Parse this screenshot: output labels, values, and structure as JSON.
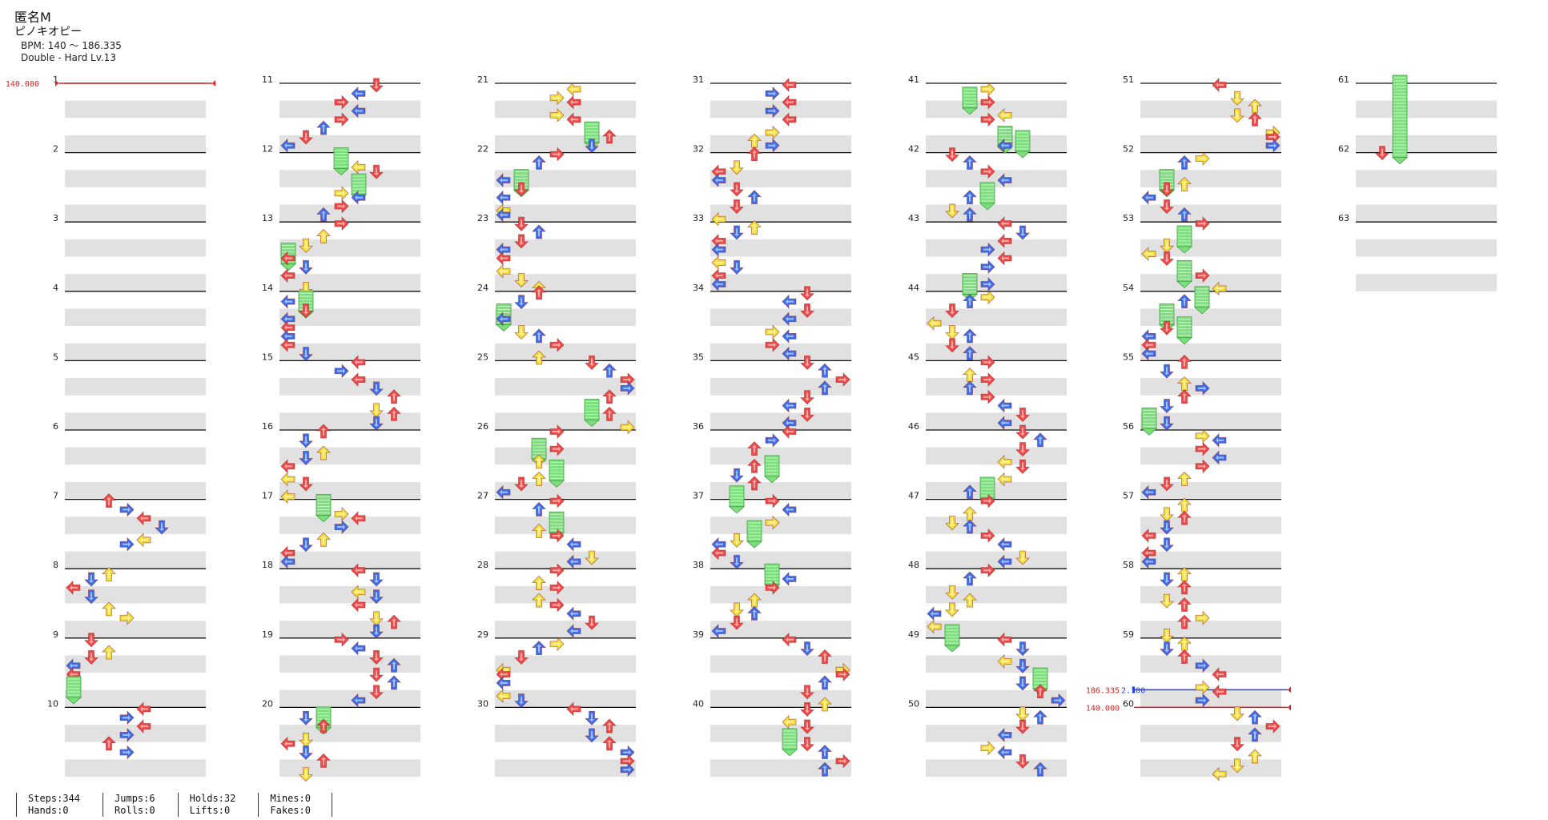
{
  "header": {
    "title": "匿名M",
    "artist": "ピノキオピー",
    "bpm": "BPM: 140 ～ 186.335",
    "difficulty": "Double - Hard  Lv.13"
  },
  "bpm_markers": [
    {
      "id": "start",
      "value": "140.000",
      "measure": 1
    },
    {
      "id": "change-high",
      "value": "186.335",
      "value2": "2.100",
      "measure": 60
    },
    {
      "id": "change-back",
      "value": "140.000",
      "measure": 60
    }
  ],
  "colors": {
    "red": "#f24848",
    "blue": "#3a6ef0",
    "yellow": "#f5e13a",
    "purple": "#b24cf0",
    "hold_green": "#7be07b",
    "stripe": "#e1e1e1",
    "bar_line": "#111111",
    "bpm_red": "#e02020",
    "bpm_blue": "#2040e0"
  },
  "columns": [
    {
      "measures": [
        1,
        2,
        3,
        4,
        5,
        6,
        7,
        8,
        9,
        10
      ]
    },
    {
      "measures": [
        11,
        12,
        13,
        14,
        15,
        16,
        17,
        18,
        19,
        20
      ]
    },
    {
      "measures": [
        21,
        22,
        23,
        24,
        25,
        26,
        27,
        28,
        29,
        30
      ]
    },
    {
      "measures": [
        31,
        32,
        33,
        34,
        35,
        36,
        37,
        38,
        39,
        40
      ]
    },
    {
      "measures": [
        41,
        42,
        43,
        44,
        45,
        46,
        47,
        48,
        49,
        50
      ]
    },
    {
      "measures": [
        51,
        52,
        53,
        54,
        55,
        56,
        57,
        58,
        59,
        60
      ]
    },
    {
      "measures": [
        61,
        62,
        63
      ]
    }
  ],
  "stats": [
    [
      {
        "label": "Steps",
        "value": "344"
      },
      {
        "label": "Hands",
        "value": "0"
      }
    ],
    [
      {
        "label": "Jumps",
        "value": "6"
      },
      {
        "label": "Rolls",
        "value": "0"
      }
    ],
    [
      {
        "label": "Holds",
        "value": "32"
      },
      {
        "label": "Lifts",
        "value": "0"
      }
    ],
    [
      {
        "label": "Mines",
        "value": "0"
      },
      {
        "label": "Fakes",
        "value": "0"
      }
    ]
  ]
}
